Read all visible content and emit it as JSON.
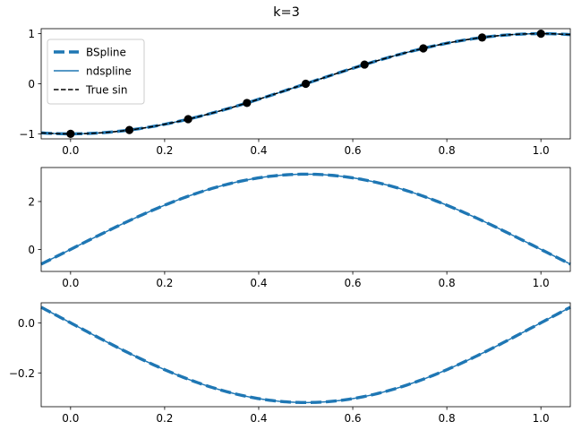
{
  "chart_data": {
    "title": "k=3",
    "legend": {
      "placement": "upper-left",
      "entries": [
        {
          "label": "BSpline",
          "style": "dashed-thick",
          "color": "#1f77b4"
        },
        {
          "label": "ndspline",
          "style": "solid",
          "color": "#1f77b4"
        },
        {
          "label": "True sin",
          "style": "dashed",
          "color": "#000000"
        }
      ]
    },
    "panels": [
      {
        "type": "line",
        "description": "function value",
        "xlim": [
          -0.0625,
          1.0625
        ],
        "ylim": [
          -1.1,
          1.1
        ],
        "xticks": [
          0.0,
          0.2,
          0.4,
          0.6,
          0.8,
          1.0
        ],
        "xtick_labels": [
          "0.0",
          "0.2",
          "0.4",
          "0.6",
          "0.8",
          "1.0"
        ],
        "yticks": [
          -1,
          0,
          1
        ],
        "ytick_labels": [
          "−1",
          "0",
          "1"
        ],
        "series": [
          {
            "name": "BSpline",
            "expr": "sin(pi*(x-0.5))",
            "color": "#1f77b4",
            "style": "dashed-thick"
          },
          {
            "name": "ndspline",
            "expr": "sin(pi*(x-0.5))",
            "color": "#1f77b4",
            "style": "solid"
          },
          {
            "name": "True sin",
            "expr": "sin(pi*(x-0.5))",
            "color": "#000000",
            "style": "dashed"
          }
        ],
        "knots": {
          "x": [
            0.0,
            0.125,
            0.25,
            0.375,
            0.5,
            0.625,
            0.75,
            0.875,
            1.0
          ],
          "y": [
            -1.0,
            -0.924,
            -0.707,
            -0.383,
            0.0,
            0.383,
            0.707,
            0.924,
            1.0
          ]
        }
      },
      {
        "type": "line",
        "description": "first derivative",
        "xlim": [
          -0.0625,
          1.0625
        ],
        "ylim": [
          -0.92,
          3.42
        ],
        "xticks": [
          0.0,
          0.2,
          0.4,
          0.6,
          0.8,
          1.0
        ],
        "xtick_labels": [
          "0.0",
          "0.2",
          "0.4",
          "0.6",
          "0.8",
          "1.0"
        ],
        "yticks": [
          0,
          2
        ],
        "ytick_labels": [
          "0",
          "2"
        ],
        "series": [
          {
            "name": "BSpline",
            "expr": "pi*cos(pi*(x-0.5))",
            "color": "#1f77b4",
            "style": "dashed-thick"
          },
          {
            "name": "ndspline",
            "expr": "pi*cos(pi*(x-0.5))",
            "color": "#1f77b4",
            "style": "solid"
          }
        ]
      },
      {
        "type": "line",
        "description": "second (scaled) derivative",
        "xlim": [
          -0.0625,
          1.0625
        ],
        "ylim": [
          -0.335,
          0.08
        ],
        "xticks": [
          0.0,
          0.2,
          0.4,
          0.6,
          0.8,
          1.0
        ],
        "xtick_labels": [
          "0.0",
          "0.2",
          "0.4",
          "0.6",
          "0.8",
          "1.0"
        ],
        "yticks": [
          -0.2,
          0.0
        ],
        "ytick_labels": [
          "−0.2",
          "0.0"
        ],
        "series": [
          {
            "name": "BSpline",
            "expr": "-(1/pi)*cos(pi*(x-0.5))",
            "color": "#1f77b4",
            "style": "dashed-thick"
          },
          {
            "name": "ndspline",
            "expr": "-(1/pi)*cos(pi*(x-0.5))",
            "color": "#1f77b4",
            "style": "solid"
          }
        ]
      }
    ]
  }
}
